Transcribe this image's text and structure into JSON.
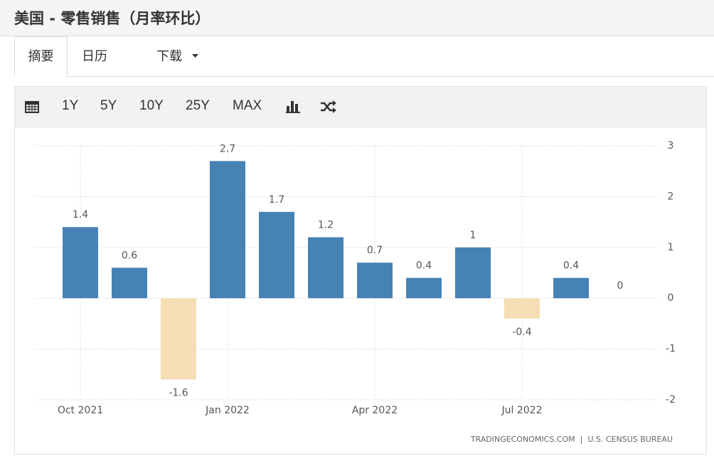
{
  "ui": {
    "title": "美国 - 零售销售（月率环比）",
    "tabs": [
      "摘要",
      "日历",
      "下载"
    ],
    "toolbar": [
      "1Y",
      "5Y",
      "10Y",
      "25Y",
      "MAX"
    ]
  },
  "chart_data": {
    "type": "bar",
    "categories": [
      "Oct 2021",
      null,
      null,
      "Jan 2022",
      null,
      null,
      "Apr 2022",
      null,
      null,
      "Jul 2022",
      null,
      null
    ],
    "values": [
      1.4,
      0.6,
      -1.6,
      2.7,
      1.7,
      1.2,
      0.7,
      0.4,
      1,
      -0.4,
      0.4,
      0
    ],
    "color": "#4682b4",
    "negative_color": "#f5deb3",
    "ylim": [
      -2,
      3
    ],
    "yticks": [
      -2,
      -1,
      0,
      1,
      2,
      3
    ],
    "grid": true,
    "source": "TRADINGECONOMICS.COM  |  U.S. CENSUS BUREAU"
  }
}
